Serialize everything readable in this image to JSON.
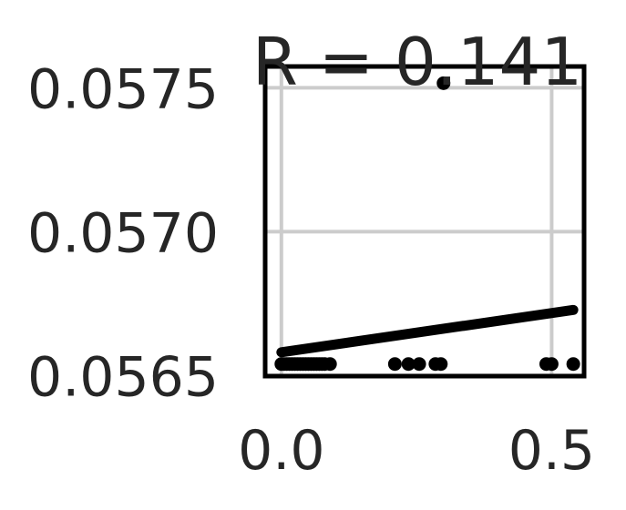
{
  "chart_data": {
    "type": "scatter",
    "title": "R = 0.141",
    "xlabel": "",
    "ylabel": "",
    "xlim": [
      -0.03,
      0.56
    ],
    "ylim": [
      0.056498,
      0.057574
    ],
    "xticks": [
      0.0,
      0.5
    ],
    "xtick_labels": [
      "0.0",
      "0.5"
    ],
    "yticks": [
      0.0565,
      0.057,
      0.0575
    ],
    "ytick_labels": [
      "0.0565",
      "0.0570",
      "0.0575"
    ],
    "grid": true,
    "points": [
      {
        "x": 0.0,
        "y": 0.05654
      },
      {
        "x": 0.005,
        "y": 0.05654
      },
      {
        "x": 0.01,
        "y": 0.05654
      },
      {
        "x": 0.015,
        "y": 0.05654
      },
      {
        "x": 0.02,
        "y": 0.05654
      },
      {
        "x": 0.025,
        "y": 0.05654
      },
      {
        "x": 0.03,
        "y": 0.05654
      },
      {
        "x": 0.035,
        "y": 0.05654
      },
      {
        "x": 0.04,
        "y": 0.05654
      },
      {
        "x": 0.045,
        "y": 0.05654
      },
      {
        "x": 0.05,
        "y": 0.05654
      },
      {
        "x": 0.055,
        "y": 0.05654
      },
      {
        "x": 0.06,
        "y": 0.05654
      },
      {
        "x": 0.065,
        "y": 0.05654
      },
      {
        "x": 0.07,
        "y": 0.05654
      },
      {
        "x": 0.075,
        "y": 0.05654
      },
      {
        "x": 0.08,
        "y": 0.05654
      },
      {
        "x": 0.09,
        "y": 0.05654
      },
      {
        "x": 0.21,
        "y": 0.05654
      },
      {
        "x": 0.235,
        "y": 0.05654
      },
      {
        "x": 0.255,
        "y": 0.05654
      },
      {
        "x": 0.285,
        "y": 0.05654
      },
      {
        "x": 0.295,
        "y": 0.05654
      },
      {
        "x": 0.3,
        "y": 0.057516
      },
      {
        "x": 0.49,
        "y": 0.05654
      },
      {
        "x": 0.5,
        "y": 0.05654
      },
      {
        "x": 0.54,
        "y": 0.05654
      }
    ],
    "trend_line": {
      "x": [
        0.0,
        0.54
      ],
      "y": [
        0.056581,
        0.056728
      ]
    },
    "colors": {
      "points": "#000000",
      "trend": "#000000",
      "grid": "#cccccc",
      "frame": "#000000",
      "text": "#262626"
    }
  }
}
